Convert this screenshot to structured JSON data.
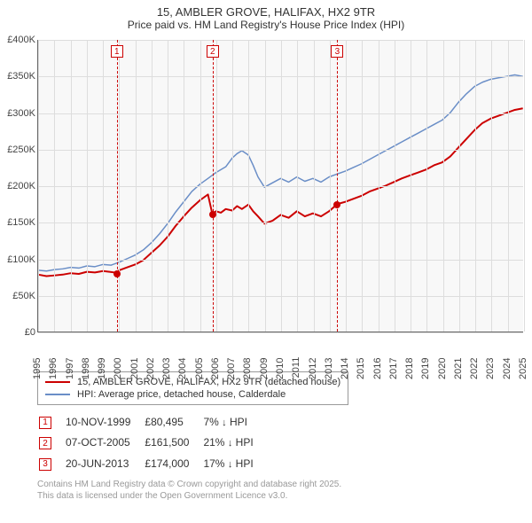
{
  "title": {
    "line1": "15, AMBLER GROVE, HALIFAX, HX2 9TR",
    "line2": "Price paid vs. HM Land Registry's House Price Index (HPI)"
  },
  "chart": {
    "type": "line",
    "background_color": "#f8f8f8",
    "grid_color": "#dddddd",
    "axis_color": "#666666",
    "x": {
      "min": 1995,
      "max": 2025,
      "step": 1
    },
    "y": {
      "min": 0,
      "max": 400000,
      "step": 50000,
      "prefix": "£",
      "suffix_k": "K"
    },
    "series": [
      {
        "name": "15, AMBLER GROVE, HALIFAX, HX2 9TR (detached house)",
        "color": "#cc0000",
        "width": 2,
        "data": [
          [
            1995,
            78
          ],
          [
            1995.5,
            76
          ],
          [
            1996,
            77
          ],
          [
            1996.5,
            78
          ],
          [
            1997,
            80
          ],
          [
            1997.5,
            79
          ],
          [
            1998,
            82
          ],
          [
            1998.5,
            81
          ],
          [
            1999,
            83
          ],
          [
            1999.4,
            82
          ],
          [
            1999.86,
            80.5
          ],
          [
            2000,
            84
          ],
          [
            2000.5,
            88
          ],
          [
            2001,
            92
          ],
          [
            2001.5,
            98
          ],
          [
            2002,
            108
          ],
          [
            2002.5,
            118
          ],
          [
            2003,
            130
          ],
          [
            2003.5,
            145
          ],
          [
            2004,
            158
          ],
          [
            2004.5,
            170
          ],
          [
            2005,
            180
          ],
          [
            2005.5,
            188
          ],
          [
            2005.77,
            161.5
          ],
          [
            2006,
            165
          ],
          [
            2006.3,
            163
          ],
          [
            2006.6,
            168
          ],
          [
            2007,
            166
          ],
          [
            2007.3,
            172
          ],
          [
            2007.6,
            168
          ],
          [
            2008,
            174
          ],
          [
            2008.3,
            165
          ],
          [
            2008.6,
            158
          ],
          [
            2009,
            148
          ],
          [
            2009.5,
            152
          ],
          [
            2010,
            160
          ],
          [
            2010.5,
            156
          ],
          [
            2011,
            165
          ],
          [
            2011.5,
            158
          ],
          [
            2012,
            162
          ],
          [
            2012.5,
            158
          ],
          [
            2013,
            165
          ],
          [
            2013.47,
            174
          ],
          [
            2013.7,
            176
          ],
          [
            2014,
            178
          ],
          [
            2014.5,
            182
          ],
          [
            2015,
            186
          ],
          [
            2015.5,
            192
          ],
          [
            2016,
            196
          ],
          [
            2016.5,
            200
          ],
          [
            2017,
            205
          ],
          [
            2017.5,
            210
          ],
          [
            2018,
            214
          ],
          [
            2018.5,
            218
          ],
          [
            2019,
            222
          ],
          [
            2019.5,
            228
          ],
          [
            2020,
            232
          ],
          [
            2020.5,
            240
          ],
          [
            2021,
            252
          ],
          [
            2021.5,
            264
          ],
          [
            2022,
            276
          ],
          [
            2022.5,
            286
          ],
          [
            2023,
            292
          ],
          [
            2023.5,
            296
          ],
          [
            2024,
            300
          ],
          [
            2024.5,
            304
          ],
          [
            2025,
            306
          ]
        ]
      },
      {
        "name": "HPI: Average price, detached house, Calderdale",
        "color": "#6a8ec7",
        "width": 1.5,
        "data": [
          [
            1995,
            84
          ],
          [
            1995.5,
            83
          ],
          [
            1996,
            85
          ],
          [
            1996.5,
            86
          ],
          [
            1997,
            88
          ],
          [
            1997.5,
            87
          ],
          [
            1998,
            90
          ],
          [
            1998.5,
            89
          ],
          [
            1999,
            92
          ],
          [
            1999.5,
            91
          ],
          [
            2000,
            95
          ],
          [
            2000.5,
            100
          ],
          [
            2001,
            105
          ],
          [
            2001.5,
            112
          ],
          [
            2002,
            122
          ],
          [
            2002.5,
            134
          ],
          [
            2003,
            148
          ],
          [
            2003.5,
            164
          ],
          [
            2004,
            178
          ],
          [
            2004.5,
            192
          ],
          [
            2005,
            202
          ],
          [
            2005.5,
            210
          ],
          [
            2006,
            218
          ],
          [
            2006.3,
            222
          ],
          [
            2006.6,
            226
          ],
          [
            2007,
            238
          ],
          [
            2007.3,
            244
          ],
          [
            2007.6,
            248
          ],
          [
            2008,
            242
          ],
          [
            2008.3,
            228
          ],
          [
            2008.6,
            212
          ],
          [
            2009,
            198
          ],
          [
            2009.5,
            204
          ],
          [
            2010,
            210
          ],
          [
            2010.5,
            205
          ],
          [
            2011,
            212
          ],
          [
            2011.5,
            206
          ],
          [
            2012,
            210
          ],
          [
            2012.5,
            205
          ],
          [
            2013,
            212
          ],
          [
            2013.5,
            216
          ],
          [
            2014,
            220
          ],
          [
            2014.5,
            225
          ],
          [
            2015,
            230
          ],
          [
            2015.5,
            236
          ],
          [
            2016,
            242
          ],
          [
            2016.5,
            248
          ],
          [
            2017,
            254
          ],
          [
            2017.5,
            260
          ],
          [
            2018,
            266
          ],
          [
            2018.5,
            272
          ],
          [
            2019,
            278
          ],
          [
            2019.5,
            284
          ],
          [
            2020,
            290
          ],
          [
            2020.5,
            300
          ],
          [
            2021,
            314
          ],
          [
            2021.5,
            326
          ],
          [
            2022,
            336
          ],
          [
            2022.5,
            342
          ],
          [
            2023,
            346
          ],
          [
            2023.5,
            348
          ],
          [
            2024,
            350
          ],
          [
            2024.5,
            352
          ],
          [
            2025,
            350
          ]
        ]
      }
    ],
    "events": [
      {
        "n": "1",
        "year": 1999.86,
        "price_k": 80.5
      },
      {
        "n": "2",
        "year": 2005.77,
        "price_k": 161.5
      },
      {
        "n": "3",
        "year": 2013.47,
        "price_k": 174
      }
    ]
  },
  "legend": [
    {
      "color": "#cc0000",
      "label": "15, AMBLER GROVE, HALIFAX, HX2 9TR (detached house)"
    },
    {
      "color": "#6a8ec7",
      "label": "HPI: Average price, detached house, Calderdale"
    }
  ],
  "events_table": [
    {
      "n": "1",
      "date": "10-NOV-1999",
      "price": "£80,495",
      "pct": "7%",
      "dir": "↓",
      "ref": "HPI"
    },
    {
      "n": "2",
      "date": "07-OCT-2005",
      "price": "£161,500",
      "pct": "21%",
      "dir": "↓",
      "ref": "HPI"
    },
    {
      "n": "3",
      "date": "20-JUN-2013",
      "price": "£174,000",
      "pct": "17%",
      "dir": "↓",
      "ref": "HPI"
    }
  ],
  "footer": {
    "line1": "Contains HM Land Registry data © Crown copyright and database right 2025.",
    "line2": "This data is licensed under the Open Government Licence v3.0."
  }
}
